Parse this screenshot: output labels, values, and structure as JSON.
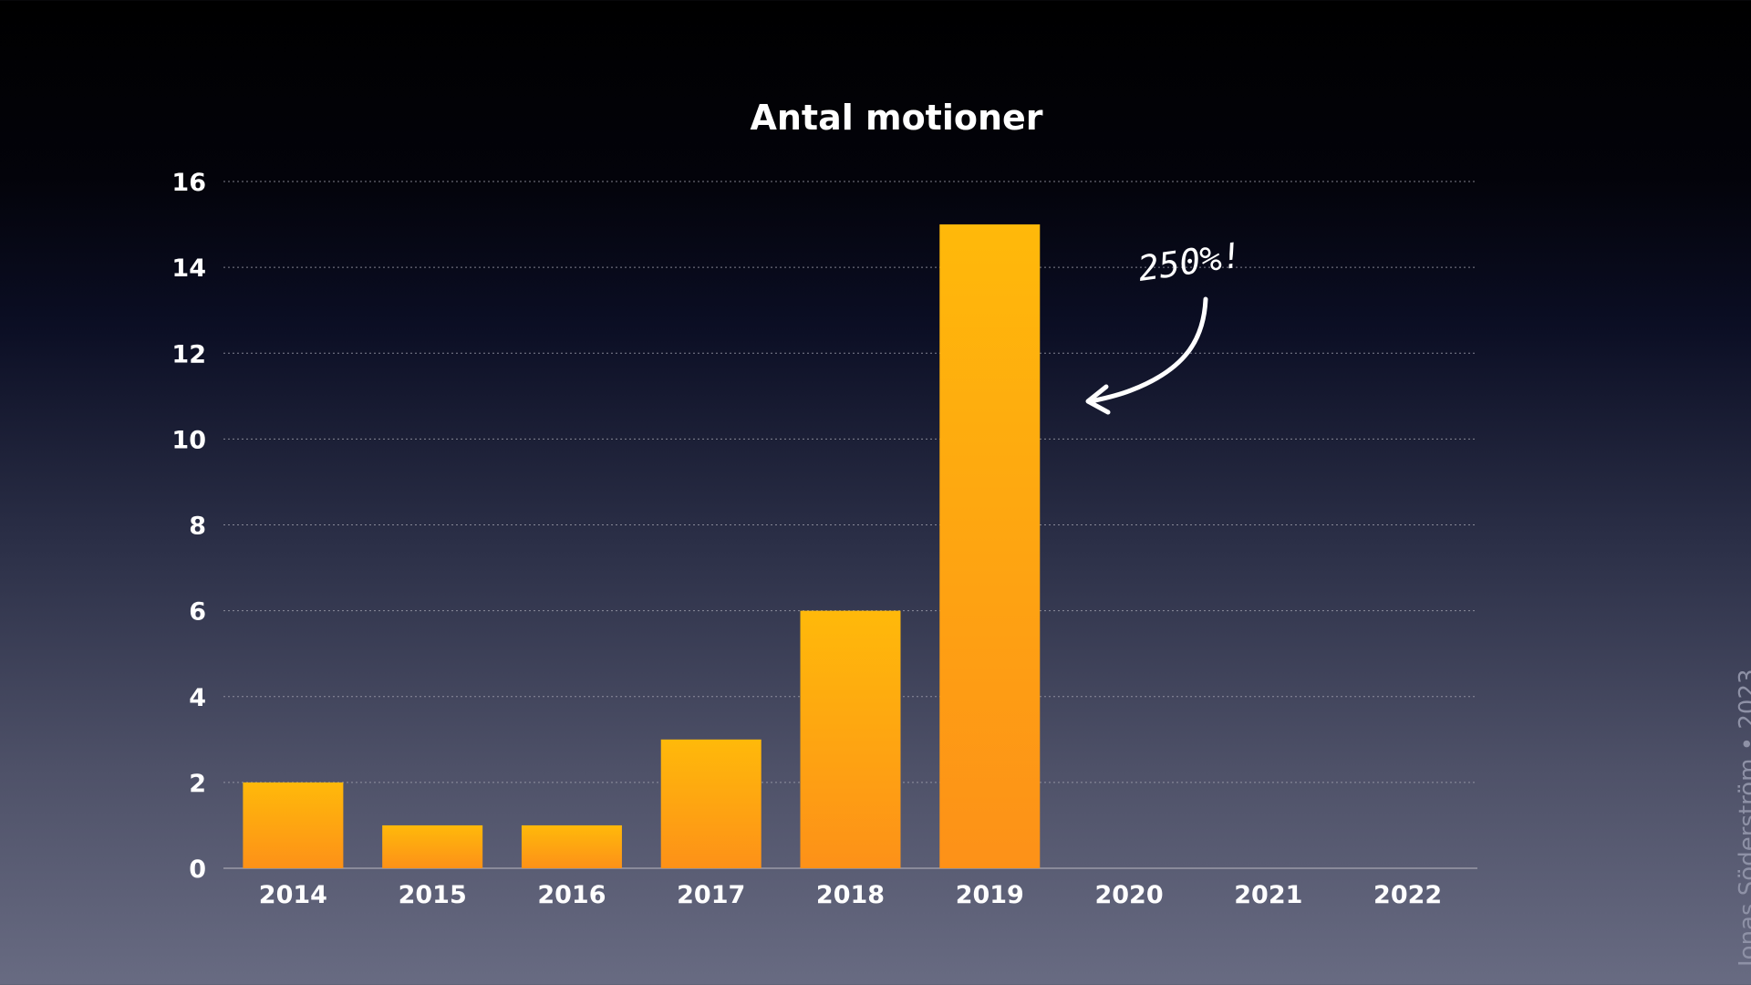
{
  "chart_data": {
    "type": "bar",
    "title": "Antal motioner",
    "categories": [
      "2014",
      "2015",
      "2016",
      "2017",
      "2018",
      "2019",
      "2020",
      "2021",
      "2022"
    ],
    "values": [
      2,
      1,
      1,
      3,
      6,
      15,
      null,
      null,
      null
    ],
    "ylim": [
      0,
      16
    ],
    "yticks": [
      0,
      2,
      4,
      6,
      8,
      10,
      12,
      14,
      16
    ],
    "grid": true,
    "bar_color_top": "#ffb90a",
    "bar_color_bottom": "#fd9118",
    "annotation": {
      "text": "250%!",
      "target_category": "2019"
    }
  },
  "credit": "Jonas Söderström • 2023"
}
